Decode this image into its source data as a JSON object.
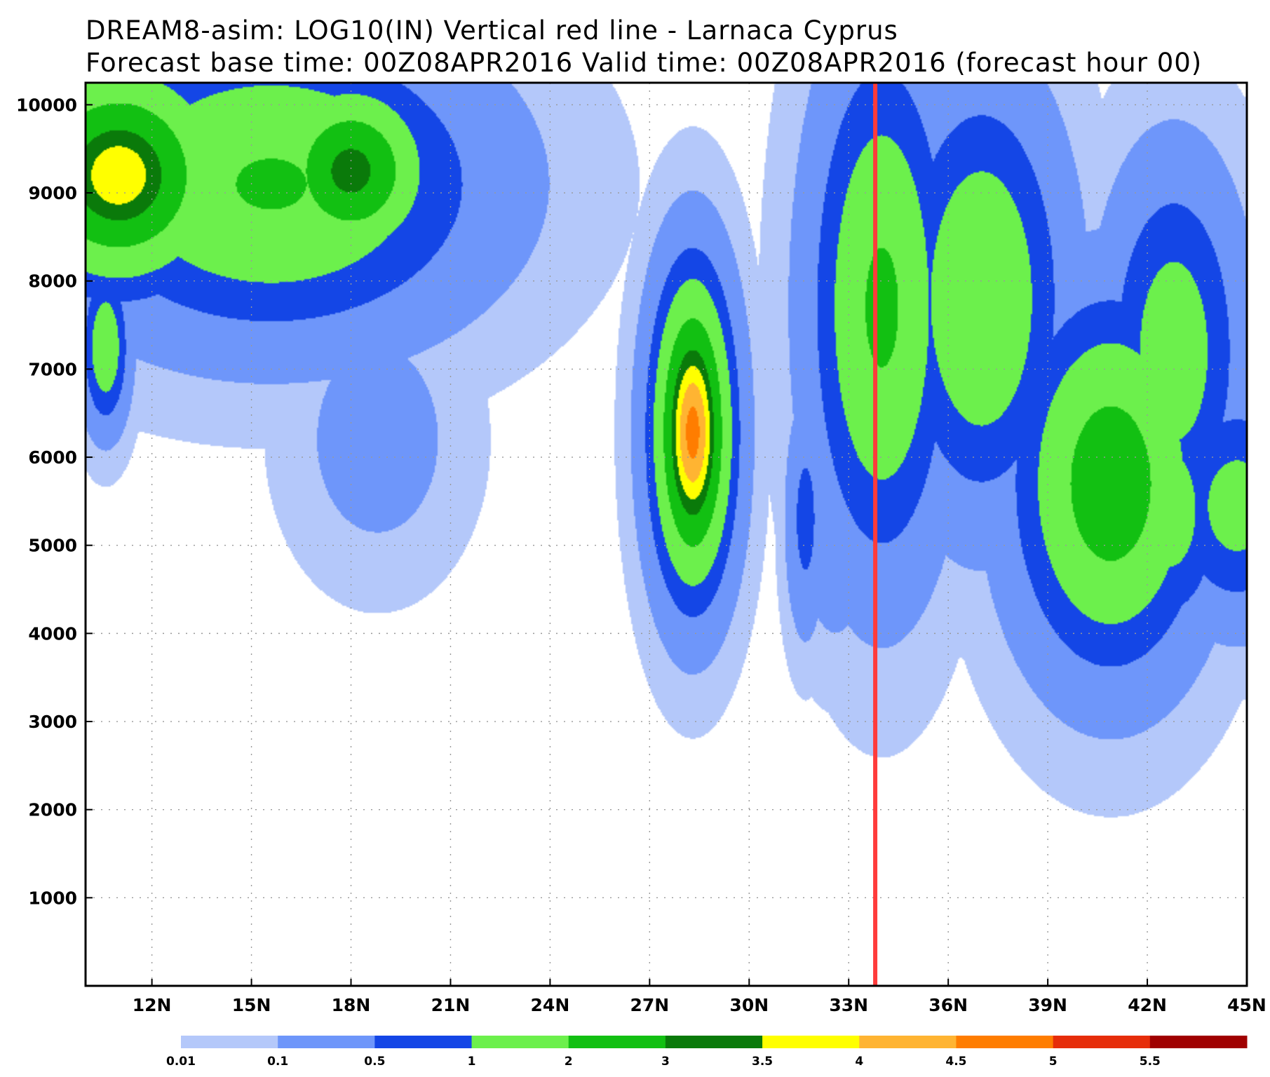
{
  "title_line1": "DREAM8-asim: LOG10(IN)    Vertical red line -  Larnaca Cyprus",
  "title_line2": "Forecast base time: 00Z08APR2016  Valid time: 00Z08APR2016 (forecast hour 00)",
  "chart_data": {
    "type": "heatmap",
    "title": "DREAM8-asim: LOG10(IN)    Vertical red line -  Larnaca Cyprus",
    "subtitle": "Forecast base time: 00Z08APR2016  Valid time: 00Z08APR2016 (forecast hour 00)",
    "xlabel": "",
    "ylabel": "",
    "xlim": [
      10,
      45
    ],
    "ylim": [
      0,
      10250
    ],
    "x_ticks": [
      12,
      15,
      18,
      21,
      24,
      27,
      30,
      33,
      36,
      39,
      42,
      45
    ],
    "x_tick_labels": [
      "12N",
      "15N",
      "18N",
      "21N",
      "24N",
      "27N",
      "30N",
      "33N",
      "36N",
      "39N",
      "42N",
      "45N"
    ],
    "y_ticks": [
      1000,
      2000,
      3000,
      4000,
      5000,
      6000,
      7000,
      8000,
      9000,
      10000
    ],
    "y_tick_labels": [
      "1000",
      "2000",
      "3000",
      "4000",
      "5000",
      "6000",
      "7000",
      "8000",
      "9000",
      "10000"
    ],
    "grid": true,
    "reference_line": {
      "x": 33.8,
      "color": "#ff3b3b"
    },
    "levels": [
      0.01,
      0.1,
      0.5,
      1,
      2,
      3,
      3.5,
      4,
      4.5,
      5,
      5.5
    ],
    "level_labels": [
      "0.01",
      "0.1",
      "0.5",
      "1",
      "2",
      "3",
      "3.5",
      "4",
      "4.5",
      "5",
      "5.5"
    ],
    "colors": [
      "#b4c8fa",
      "#6e96fa",
      "#1446e6",
      "#6cf04c",
      "#12c012",
      "#0a7a0a",
      "#ffff00",
      "#ffb432",
      "#ff7d00",
      "#e62d0a",
      "#a00000"
    ],
    "features": [
      {
        "cx": 11.0,
        "cy": 9200,
        "sx": 2.5,
        "sy": 1000,
        "peak": 3.9
      },
      {
        "cx": 10.6,
        "cy": 7250,
        "sx": 0.55,
        "sy": 700,
        "peak": 1.7
      },
      {
        "cx": 12.8,
        "cy": 8400,
        "sx": 4.6,
        "sy": 1350,
        "peak": 0.09
      },
      {
        "cx": 15.6,
        "cy": 9100,
        "sx": 4.8,
        "sy": 1300,
        "peak": 2.1
      },
      {
        "cx": 18.0,
        "cy": 9250,
        "sx": 1.9,
        "sy": 800,
        "peak": 3.3
      },
      {
        "cx": 15.8,
        "cy": 8000,
        "sx": 3.2,
        "sy": 700,
        "peak": 0.55
      },
      {
        "cx": 18.8,
        "cy": 6200,
        "sx": 1.9,
        "sy": 1100,
        "peak": 0.25
      },
      {
        "cx": 17.8,
        "cy": 5100,
        "sx": 0.55,
        "sy": 400,
        "peak": 0.05
      },
      {
        "cx": 28.3,
        "cy": 6280,
        "sx": 0.95,
        "sy": 1400,
        "peak": 4.7
      },
      {
        "cx": 31.7,
        "cy": 5300,
        "sx": 0.45,
        "sy": 1000,
        "peak": 0.7
      },
      {
        "cx": 32.6,
        "cy": 5350,
        "sx": 0.95,
        "sy": 1200,
        "peak": 0.35
      },
      {
        "cx": 33.2,
        "cy": 4450,
        "sx": 1.8,
        "sy": 550,
        "peak": 0.05
      },
      {
        "cx": 34.0,
        "cy": 7700,
        "sx": 1.6,
        "sy": 2200,
        "peak": 2.2
      },
      {
        "cx": 34.3,
        "cy": 5200,
        "sx": 1.0,
        "sy": 900,
        "peak": 0.12
      },
      {
        "cx": 34.5,
        "cy": 4300,
        "sx": 0.5,
        "sy": 500,
        "peak": 0.03
      },
      {
        "cx": 35.3,
        "cy": 6400,
        "sx": 2.5,
        "sy": 1200,
        "peak": 0.02
      },
      {
        "cx": 37.0,
        "cy": 7800,
        "sx": 1.9,
        "sy": 1800,
        "peak": 1.9
      },
      {
        "cx": 36.2,
        "cy": 6000,
        "sx": 0.8,
        "sy": 500,
        "peak": 0.12
      },
      {
        "cx": 40.9,
        "cy": 5700,
        "sx": 2.2,
        "sy": 1600,
        "peak": 2.7
      },
      {
        "cx": 40.8,
        "cy": 7300,
        "sx": 1.1,
        "sy": 1100,
        "peak": 0.05
      },
      {
        "cx": 42.8,
        "cy": 7200,
        "sx": 1.6,
        "sy": 1600,
        "peak": 1.5
      },
      {
        "cx": 42.7,
        "cy": 5400,
        "sx": 1.3,
        "sy": 1100,
        "peak": 1.4
      },
      {
        "cx": 44.7,
        "cy": 5450,
        "sx": 1.7,
        "sy": 1000,
        "peak": 1.3
      },
      {
        "cx": 44.7,
        "cy": 7000,
        "sx": 1.8,
        "sy": 1700,
        "peak": 0.28
      },
      {
        "cx": 42.5,
        "cy": 6300,
        "sx": 3.2,
        "sy": 2300,
        "peak": 0.015
      }
    ]
  }
}
